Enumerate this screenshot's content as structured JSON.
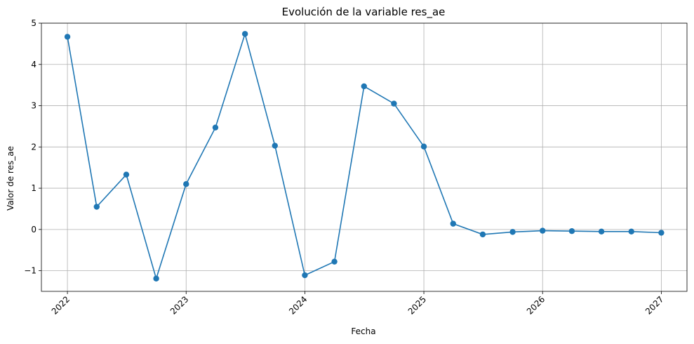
{
  "chart_data": {
    "type": "line",
    "title": "Evolución de la variable res_ae",
    "xlabel": "Fecha",
    "ylabel": "Valor de res_ae",
    "grid": true,
    "color": "#1f77b4",
    "x": [
      "2022-01-01",
      "2022-04-01",
      "2022-07-01",
      "2022-10-01",
      "2023-01-01",
      "2023-04-01",
      "2023-07-01",
      "2023-10-01",
      "2024-01-01",
      "2024-04-01",
      "2024-07-01",
      "2024-10-01",
      "2025-01-01",
      "2025-04-01",
      "2025-07-01",
      "2025-10-01",
      "2026-01-01",
      "2026-04-01",
      "2026-07-01",
      "2026-10-01",
      "2027-01-01"
    ],
    "values": [
      4.67,
      0.55,
      1.33,
      -1.19,
      1.1,
      2.47,
      4.74,
      2.03,
      -1.11,
      -0.78,
      3.47,
      3.05,
      2.01,
      0.14,
      -0.12,
      -0.06,
      -0.03,
      -0.04,
      -0.05,
      -0.05,
      -0.08
    ],
    "xlim": [
      "2021-10-13",
      "2027-03-21"
    ],
    "ylim": [
      -1.5,
      5.0
    ],
    "x_ticks": [
      "2022",
      "2023",
      "2024",
      "2025",
      "2026",
      "2027"
    ],
    "x_tick_values": [
      "2022-01-01",
      "2023-01-01",
      "2024-01-01",
      "2025-01-01",
      "2026-01-01",
      "2027-01-01"
    ],
    "y_ticks": [
      -1,
      0,
      1,
      2,
      3,
      4,
      5
    ],
    "y_tick_labels": [
      "−1",
      "0",
      "1",
      "2",
      "3",
      "4",
      "5"
    ]
  }
}
